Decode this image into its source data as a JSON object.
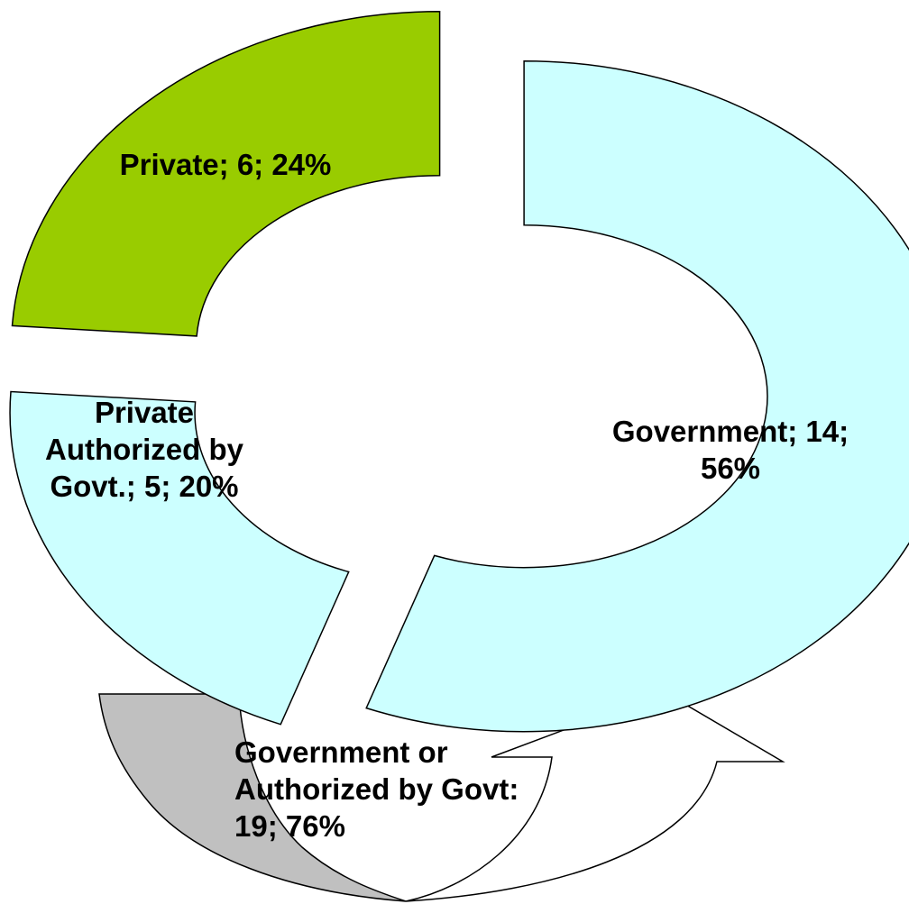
{
  "chart_data": {
    "type": "pie",
    "variant": "exploded-donut",
    "slices": [
      {
        "name": "Government",
        "value": 14,
        "percent": "56%",
        "label_lines": [
          "Government; 14;",
          "56%"
        ],
        "color": "#CCFFFF"
      },
      {
        "name": "Private Authorized by Govt.",
        "value": 5,
        "percent": "20%",
        "label_lines": [
          "Private",
          "Authorized by",
          "Govt.; 5; 20%"
        ],
        "color": "#CCFFFF"
      },
      {
        "name": "Private",
        "value": 6,
        "percent": "24%",
        "label_lines": [
          "Private; 6; 24%"
        ],
        "color": "#99CC00"
      }
    ],
    "group": {
      "name": "Government or Authorized by Govt",
      "value": 19,
      "percent": "76%",
      "label_lines": [
        "Government or",
        "Authorized by Govt:",
        "19; 76%"
      ],
      "color": "#C0C0C0",
      "arrow_fill": "#FFFFFF"
    },
    "title": "",
    "legend": "none"
  }
}
